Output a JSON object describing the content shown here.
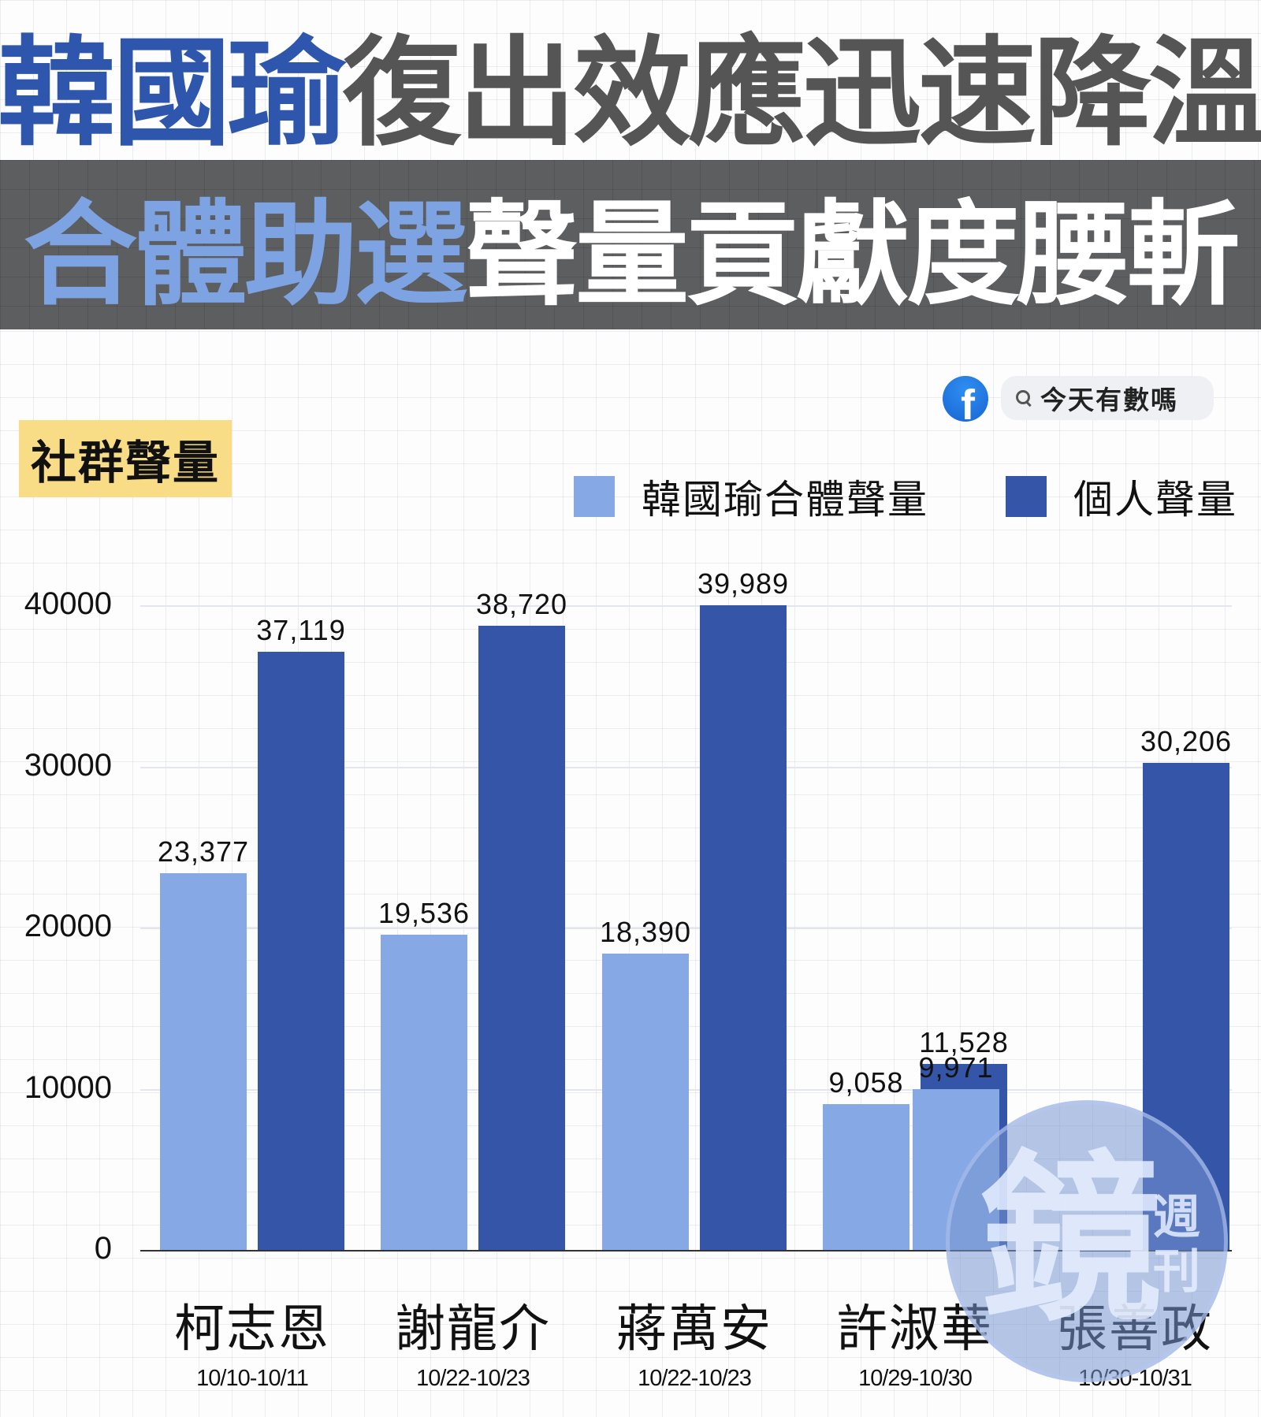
{
  "headline": {
    "line1_highlight": "韓國瑜",
    "line1_rest": "復出效應迅速降溫",
    "line2_highlight": "合體助選",
    "line2_rest": "聲量貢獻度腰斬"
  },
  "source": {
    "logo_icon": "facebook-icon",
    "logo_glyph": "f",
    "search_icon": "search-icon",
    "page_name": "今天有數嗎"
  },
  "section_tag": "社群聲量",
  "colors": {
    "joint": "#86a8e4",
    "personal": "#3455a8",
    "headline_blue": "#2f56ad",
    "headline_gray": "#555555",
    "banner_bg": "#5d5e60",
    "banner_blue": "#7ea3e3",
    "tag_bg": "#f8dc86"
  },
  "watermark": {
    "main": "鏡",
    "sub": "週刊"
  },
  "chart_data": {
    "type": "bar",
    "title": "社群聲量",
    "xlabel": "",
    "ylabel": "",
    "ylim": [
      0,
      40000
    ],
    "yticks": [
      "0",
      "10000",
      "20000",
      "30000",
      "40000"
    ],
    "grid": true,
    "legend_position": "top-right",
    "categories": [
      "柯志恩",
      "謝龍介",
      "蔣萬安",
      "許淑華",
      "張善政"
    ],
    "category_dates": [
      "10/10-10/11",
      "10/22-10/23",
      "10/22-10/23",
      "10/29-10/30",
      "10/30-10/31"
    ],
    "series": [
      {
        "name": "韓國瑜合體聲量",
        "color": "#86a8e4",
        "values": [
          23377,
          19536,
          18390,
          9058,
          9971
        ],
        "labels": [
          "23,377",
          "19,536",
          "18,390",
          "9,058",
          "9,971"
        ]
      },
      {
        "name": "個人聲量",
        "color": "#3455a8",
        "values": [
          37119,
          38720,
          39989,
          11528,
          30206
        ],
        "labels": [
          "37,119",
          "38,720",
          "39,989",
          "11,528",
          "30,206"
        ]
      }
    ]
  }
}
